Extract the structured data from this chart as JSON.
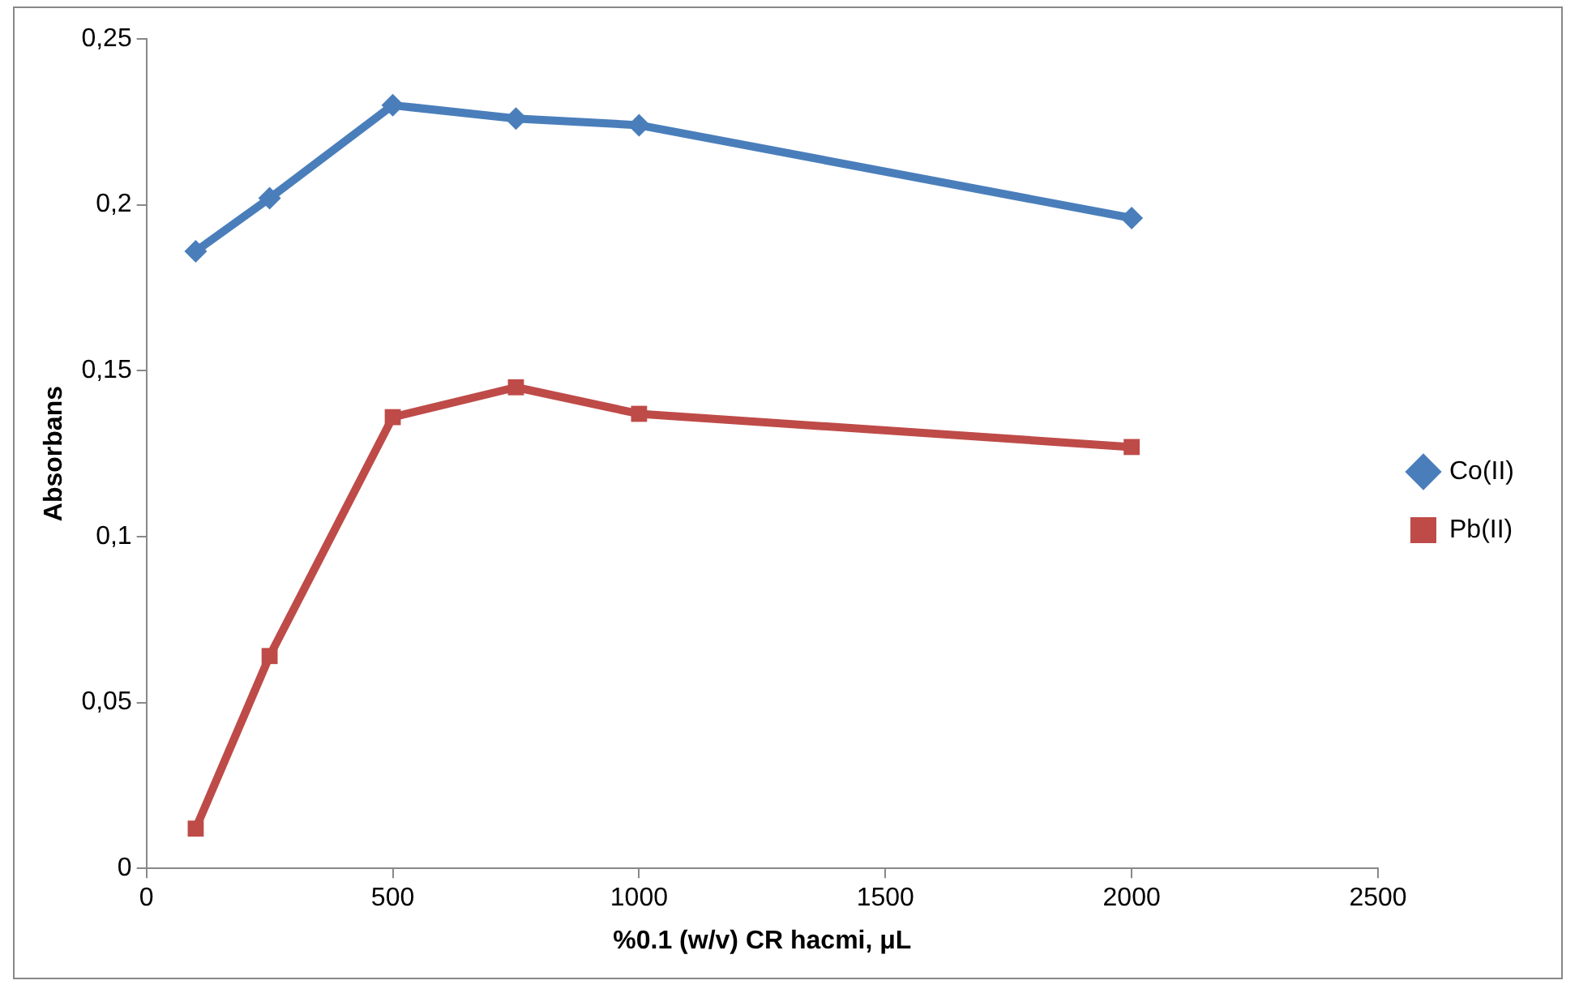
{
  "chart_data": {
    "type": "line",
    "xlabel": "%0.1 (w/v) CR hacmi, μL",
    "ylabel": "Absorbans",
    "xlim": [
      0,
      2500
    ],
    "xticks": [
      0,
      500,
      1000,
      1500,
      2000,
      2500
    ],
    "ylim": [
      0,
      0.25
    ],
    "yticks": [
      0,
      {
        "value": 0.05,
        "label": "0,05"
      },
      {
        "value": 0.1,
        "label": "0,1"
      },
      {
        "value": 0.15,
        "label": "0,15"
      },
      {
        "value": 0.2,
        "label": "0,2"
      },
      {
        "value": 0.25,
        "label": "0,25"
      }
    ],
    "x": [
      100,
      250,
      500,
      750,
      1000,
      2000
    ],
    "series": [
      {
        "name": "Co(II)",
        "color": "#4a7ebb",
        "marker": "diamond",
        "values": [
          0.186,
          0.202,
          0.23,
          0.226,
          0.224,
          0.196
        ]
      },
      {
        "name": "Pb(II)",
        "color": "#be4b48",
        "marker": "square",
        "values": [
          0.012,
          0.064,
          0.136,
          0.145,
          0.137,
          0.127
        ]
      }
    ],
    "grid": false,
    "legend": "right",
    "line_style": "solid"
  }
}
